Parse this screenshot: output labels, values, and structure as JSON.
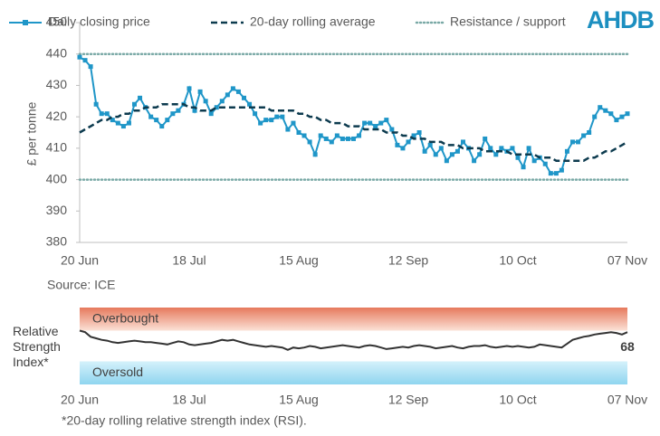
{
  "logo": "AHDB",
  "chart_data": [
    {
      "type": "line",
      "y_label": "£ per tonne",
      "source": "Source: ICE",
      "categories": [
        "20 Jun",
        null,
        null,
        null,
        null,
        null,
        null,
        null,
        null,
        null,
        null,
        null,
        null,
        null,
        null,
        null,
        null,
        null,
        null,
        null,
        "18 Jul",
        null,
        null,
        null,
        null,
        null,
        null,
        null,
        null,
        null,
        null,
        null,
        null,
        null,
        null,
        null,
        null,
        null,
        null,
        null,
        "15 Aug",
        null,
        null,
        null,
        null,
        null,
        null,
        null,
        null,
        null,
        null,
        null,
        null,
        null,
        null,
        null,
        null,
        null,
        null,
        null,
        "12 Sep",
        null,
        null,
        null,
        null,
        null,
        null,
        null,
        null,
        null,
        null,
        null,
        null,
        null,
        null,
        null,
        null,
        null,
        null,
        null,
        "10 Oct",
        null,
        null,
        null,
        null,
        null,
        null,
        null,
        null,
        null,
        null,
        null,
        null,
        null,
        null,
        null,
        null,
        null,
        null,
        null,
        "07 Nov"
      ],
      "series": [
        {
          "name": "Daily closing price",
          "color": "#1f96c8",
          "style": "markers",
          "values": [
            439,
            438,
            436,
            424,
            421,
            421,
            419,
            418,
            417,
            418,
            424,
            426,
            423,
            420,
            419,
            417,
            419,
            421,
            422,
            424,
            429,
            422,
            428,
            425,
            421,
            423,
            425,
            427,
            429,
            428,
            426,
            424,
            421,
            418,
            419,
            419,
            420,
            420,
            416,
            418,
            415,
            414,
            412,
            408,
            414,
            413,
            412,
            414,
            413,
            413,
            413,
            414,
            418,
            418,
            417,
            418,
            419,
            416,
            411,
            410,
            412,
            414,
            415,
            409,
            411,
            408,
            410,
            406,
            408,
            409,
            412,
            410,
            406,
            408,
            413,
            410,
            408,
            410,
            409,
            410,
            407,
            404,
            410,
            406,
            407,
            405,
            402,
            402,
            403,
            409,
            412,
            412,
            414,
            415,
            420,
            423,
            422,
            421,
            419,
            420,
            421
          ]
        },
        {
          "name": "20-day rolling average",
          "color": "#0d3b4f",
          "style": "dashed",
          "values": [
            415,
            416,
            417,
            418,
            419,
            419,
            420,
            420,
            421,
            421,
            422,
            422,
            423,
            423,
            423,
            424,
            424,
            424,
            424,
            424,
            423,
            423,
            422,
            422,
            422,
            423,
            423,
            423,
            423,
            423,
            423,
            423,
            423,
            423,
            423,
            422,
            422,
            422,
            422,
            422,
            421,
            421,
            420,
            420,
            419,
            419,
            418,
            418,
            418,
            417,
            417,
            417,
            416,
            416,
            416,
            416,
            415,
            415,
            415,
            414,
            414,
            413,
            413,
            413,
            412,
            412,
            412,
            411,
            411,
            411,
            410,
            410,
            410,
            410,
            409,
            409,
            409,
            409,
            409,
            408,
            408,
            408,
            408,
            408,
            407,
            407,
            407,
            406,
            406,
            406,
            406,
            406,
            406,
            407,
            407,
            408,
            409,
            409,
            410,
            411,
            412
          ]
        }
      ],
      "reference_lines": {
        "name": "Resistance / support",
        "color": "#7aa9a6",
        "values": [
          440,
          400
        ]
      },
      "ylim": [
        380,
        450
      ],
      "yticks": [
        380,
        390,
        400,
        410,
        420,
        430,
        440,
        450
      ]
    },
    {
      "type": "line",
      "y_label": "Relative Strength Index*",
      "categories": [
        "20 Jun",
        null,
        null,
        null,
        null,
        null,
        null,
        null,
        null,
        null,
        null,
        null,
        null,
        null,
        null,
        null,
        null,
        null,
        null,
        null,
        "18 Jul",
        null,
        null,
        null,
        null,
        null,
        null,
        null,
        null,
        null,
        null,
        null,
        null,
        null,
        null,
        null,
        null,
        null,
        null,
        null,
        "15 Aug",
        null,
        null,
        null,
        null,
        null,
        null,
        null,
        null,
        null,
        null,
        null,
        null,
        null,
        null,
        null,
        null,
        null,
        null,
        null,
        "12 Sep",
        null,
        null,
        null,
        null,
        null,
        null,
        null,
        null,
        null,
        null,
        null,
        null,
        null,
        null,
        null,
        null,
        null,
        null,
        null,
        "10 Oct",
        null,
        null,
        null,
        null,
        null,
        null,
        null,
        null,
        null,
        null,
        null,
        null,
        null,
        null,
        null,
        null,
        null,
        null,
        null,
        "07 Nov"
      ],
      "series": [
        {
          "color": "#333333",
          "values": [
            70,
            68,
            62,
            60,
            58,
            57,
            55,
            54,
            55,
            56,
            57,
            56,
            55,
            55,
            54,
            53,
            52,
            54,
            56,
            55,
            52,
            51,
            52,
            53,
            54,
            56,
            58,
            57,
            58,
            56,
            54,
            52,
            51,
            50,
            49,
            50,
            49,
            48,
            45,
            48,
            47,
            48,
            50,
            49,
            47,
            48,
            49,
            50,
            51,
            50,
            49,
            48,
            50,
            51,
            50,
            48,
            46,
            47,
            48,
            49,
            48,
            50,
            51,
            50,
            49,
            47,
            48,
            49,
            50,
            48,
            47,
            49,
            50,
            50,
            51,
            49,
            48,
            49,
            50,
            49,
            50,
            49,
            48,
            49,
            52,
            51,
            50,
            49,
            48,
            53,
            58,
            60,
            62,
            63,
            65,
            66,
            67,
            68,
            67,
            65,
            68
          ]
        }
      ],
      "bands": [
        {
          "label": "Overbought",
          "range": [
            70,
            100
          ]
        },
        {
          "label": "Oversold",
          "range": [
            0,
            30
          ]
        }
      ],
      "ylim": [
        0,
        100
      ]
    }
  ],
  "footnote": "*20-day rolling relative strength index (RSI)."
}
